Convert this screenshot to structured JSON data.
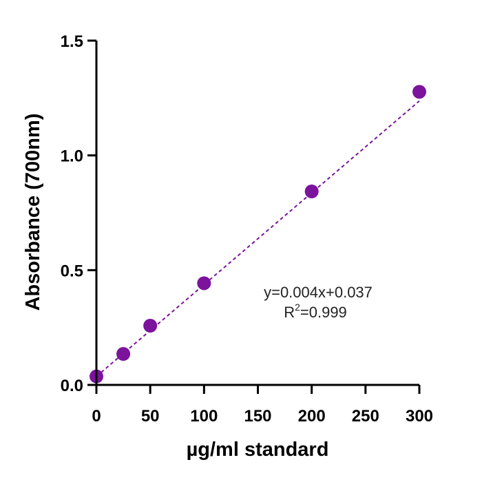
{
  "chart_data": {
    "type": "scatter",
    "title": "",
    "xlabel": "µg/ml standard",
    "ylabel": "Absorbance (700nm)",
    "xlim": [
      0,
      300
    ],
    "ylim": [
      0,
      1.5
    ],
    "xticks": [
      0,
      50,
      100,
      150,
      200,
      250,
      300
    ],
    "yticks": [
      0.0,
      0.5,
      1.0,
      1.5
    ],
    "xtick_labels": [
      "0",
      "50",
      "100",
      "150",
      "200",
      "250",
      "300"
    ],
    "ytick_labels": [
      "0.0",
      "0.5",
      "1.0",
      "1.5"
    ],
    "grid": false,
    "legend": "none",
    "series": [
      {
        "x": [
          0,
          25,
          50,
          100,
          200,
          300
        ],
        "y": [
          0.037,
          0.135,
          0.258,
          0.443,
          0.843,
          1.277
        ],
        "color": "#7B139C"
      }
    ],
    "trendline": {
      "slope": 0.004,
      "intercept": 0.037,
      "x_range": [
        0,
        300
      ],
      "style": "dashed",
      "color": "#7B139C"
    },
    "annotations": {
      "equation": "y=0.004x+0.037",
      "r2_prefix": "R",
      "r2_sup": "2",
      "r2_value": "=0.999"
    }
  }
}
